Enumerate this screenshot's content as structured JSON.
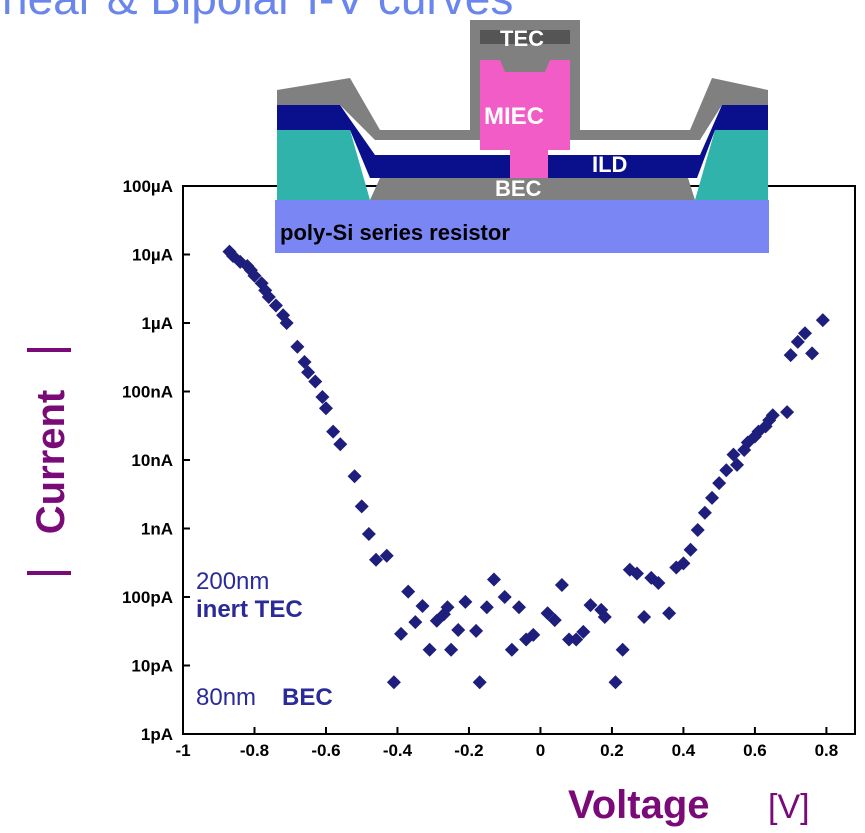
{
  "chart_data": {
    "type": "scatter",
    "title": "near & Bipolar I-V curves",
    "x_label": "Voltage",
    "x_unit": "[V]",
    "y_label": "Current",
    "color": "#1e1e7c",
    "log_y": true,
    "xlim": [
      -1,
      0.88
    ],
    "ylim": [
      1e-12,
      0.0001
    ],
    "xticks": [
      -1,
      -0.8,
      -0.6,
      -0.4,
      -0.2,
      0,
      0.2,
      0.4,
      0.6,
      0.8
    ],
    "yticks": [
      {
        "value": 0.0001,
        "label": "100µA"
      },
      {
        "value": 1e-05,
        "label": "10µA"
      },
      {
        "value": 1e-06,
        "label": "1µA"
      },
      {
        "value": 1e-07,
        "label": "100nA"
      },
      {
        "value": 1e-08,
        "label": "10nA"
      },
      {
        "value": 1e-09,
        "label": "1nA"
      },
      {
        "value": 1e-10,
        "label": "100pA"
      },
      {
        "value": 1e-11,
        "label": "10pA"
      },
      {
        "value": 1e-12,
        "label": "1pA"
      }
    ],
    "annotations": [
      "200nm",
      "inert TEC",
      "80nm",
      "BEC"
    ],
    "x": [
      -0.87,
      -0.86,
      -0.84,
      -0.82,
      -0.81,
      -0.8,
      -0.78,
      -0.77,
      -0.76,
      -0.74,
      -0.72,
      -0.71,
      -0.68,
      -0.66,
      -0.65,
      -0.63,
      -0.61,
      -0.6,
      -0.58,
      -0.56,
      -0.52,
      -0.5,
      -0.48,
      -0.46,
      -0.43,
      -0.41,
      -0.39,
      -0.37,
      -0.35,
      -0.33,
      -0.31,
      -0.29,
      -0.27,
      -0.26,
      -0.25,
      -0.23,
      -0.21,
      -0.18,
      -0.17,
      -0.15,
      -0.13,
      -0.1,
      -0.08,
      -0.06,
      -0.04,
      -0.02,
      0.02,
      0.04,
      0.06,
      0.08,
      0.1,
      0.12,
      0.14,
      0.17,
      0.18,
      0.21,
      0.23,
      0.25,
      0.27,
      0.29,
      0.31,
      0.33,
      0.36,
      0.38,
      0.4,
      0.42,
      0.44,
      0.46,
      0.48,
      0.5,
      0.52,
      0.54,
      0.55,
      0.57,
      0.58,
      0.6,
      0.61,
      0.63,
      0.64,
      0.65,
      0.69,
      0.7,
      0.72,
      0.74,
      0.76,
      0.79
    ],
    "y": [
      1.1e-05,
      9.5e-06,
      7.8e-06,
      6.8e-06,
      5.9e-06,
      4.9e-06,
      3.8e-06,
      3e-06,
      2.4e-06,
      1.8e-06,
      1.3e-06,
      1e-06,
      4.5e-07,
      2.7e-07,
      1.9e-07,
      1.4e-07,
      8.3e-08,
      5.7e-08,
      2.6e-08,
      1.7e-08,
      5.8e-09,
      2.1e-09,
      8.3e-10,
      3.5e-10,
      4e-10,
      5.7e-12,
      2.9e-11,
      1.2e-10,
      4.3e-11,
      7.4e-11,
      1.7e-11,
      4.5e-11,
      5.6e-11,
      7.1e-11,
      1.7e-11,
      3.3e-11,
      8.5e-11,
      3.2e-11,
      5.7e-12,
      7.1e-11,
      1.8e-10,
      1e-10,
      1.7e-11,
      7.1e-11,
      2.4e-11,
      2.8e-11,
      5.8e-11,
      4.6e-11,
      1.5e-10,
      2.4e-11,
      2.4e-11,
      3.1e-11,
      7.6e-11,
      6.5e-11,
      5.1e-11,
      5.7e-12,
      1.7e-11,
      2.5e-10,
      2.2e-10,
      5.1e-11,
      1.9e-10,
      1.6e-10,
      5.8e-11,
      2.7e-10,
      3.1e-10,
      4.9e-10,
      9.5e-10,
      1.7e-09,
      2.8e-09,
      4.6e-09,
      7.1e-09,
      1.2e-08,
      8.5e-09,
      1.4e-08,
      1.8e-08,
      2.2e-08,
      2.6e-08,
      3.1e-08,
      3.8e-08,
      4.5e-08,
      5e-08,
      3.4e-07,
      5.3e-07,
      7.1e-07,
      3.6e-07,
      1.1e-06
    ]
  },
  "inset": {
    "tec": "TEC",
    "miec": "MIEC",
    "ild": "ILD",
    "bec": "BEC",
    "resistor": "poly-Si series resistor"
  }
}
